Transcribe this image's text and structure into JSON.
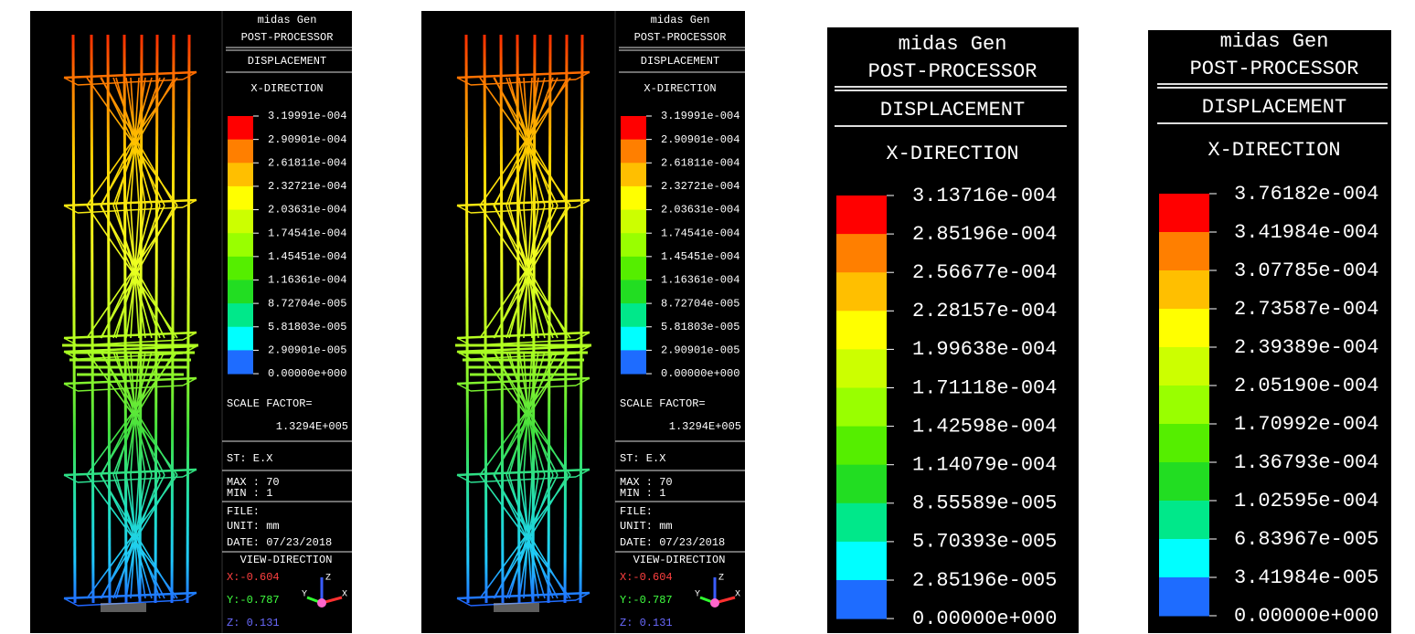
{
  "panels": [
    {
      "title": "midas Gen",
      "subtitle": "POST-PROCESSOR",
      "result": "DISPLACEMENT",
      "direction": "X-DIRECTION",
      "legend": [
        "3.19991e-004",
        "2.90901e-004",
        "2.61811e-004",
        "2.32721e-004",
        "2.03631e-004",
        "1.74541e-004",
        "1.45451e-004",
        "1.16361e-004",
        "8.72704e-005",
        "5.81803e-005",
        "2.90901e-005",
        "0.00000e+000"
      ],
      "scale_factor_label": "SCALE FACTOR=",
      "scale_factor": "1.3294E+005",
      "step": "ST: E.X",
      "max": "MAX : 70",
      "min": "MIN : 1",
      "file": "FILE:",
      "unit": "UNIT: mm",
      "date": "DATE: 07/23/2018",
      "view_direction": "VIEW-DIRECTION",
      "view_x": "X:-0.604",
      "view_y": "Y:-0.787",
      "view_z": "Z: 0.131",
      "axes": [
        "Z",
        "Y",
        "X"
      ]
    },
    {
      "title": "midas Gen",
      "subtitle": "POST-PROCESSOR",
      "result": "DISPLACEMENT",
      "direction": "X-DIRECTION",
      "legend": [
        "3.19991e-004",
        "2.90901e-004",
        "2.61811e-004",
        "2.32721e-004",
        "2.03631e-004",
        "1.74541e-004",
        "1.45451e-004",
        "1.16361e-004",
        "8.72704e-005",
        "5.81803e-005",
        "2.90901e-005",
        "0.00000e+000"
      ],
      "scale_factor_label": "SCALE FACTOR=",
      "scale_factor": "1.3294E+005",
      "step": "ST: E.X",
      "max": "MAX : 70",
      "min": "MIN : 1",
      "file": "FILE:",
      "unit": "UNIT: mm",
      "date": "DATE: 07/23/2018",
      "view_direction": "VIEW-DIRECTION",
      "view_x": "X:-0.604",
      "view_y": "Y:-0.787",
      "view_z": "Z: 0.131",
      "axes": [
        "Z",
        "Y",
        "X"
      ]
    },
    {
      "title": "midas Gen",
      "subtitle": "POST-PROCESSOR",
      "result": "DISPLACEMENT",
      "direction": "X-DIRECTION",
      "legend": [
        "3.13716e-004",
        "2.85196e-004",
        "2.56677e-004",
        "2.28157e-004",
        "1.99638e-004",
        "1.71118e-004",
        "1.42598e-004",
        "1.14079e-004",
        "8.55589e-005",
        "5.70393e-005",
        "2.85196e-005",
        "0.00000e+000"
      ]
    },
    {
      "title": "midas Gen",
      "subtitle": "POST-PROCESSOR",
      "result": "DISPLACEMENT",
      "direction": "X-DIRECTION",
      "legend": [
        "3.76182e-004",
        "3.41984e-004",
        "3.07785e-004",
        "2.73587e-004",
        "2.39389e-004",
        "2.05190e-004",
        "1.70992e-004",
        "1.36793e-004",
        "1.02595e-004",
        "6.83967e-005",
        "3.41984e-005",
        "0.00000e+000"
      ]
    }
  ]
}
